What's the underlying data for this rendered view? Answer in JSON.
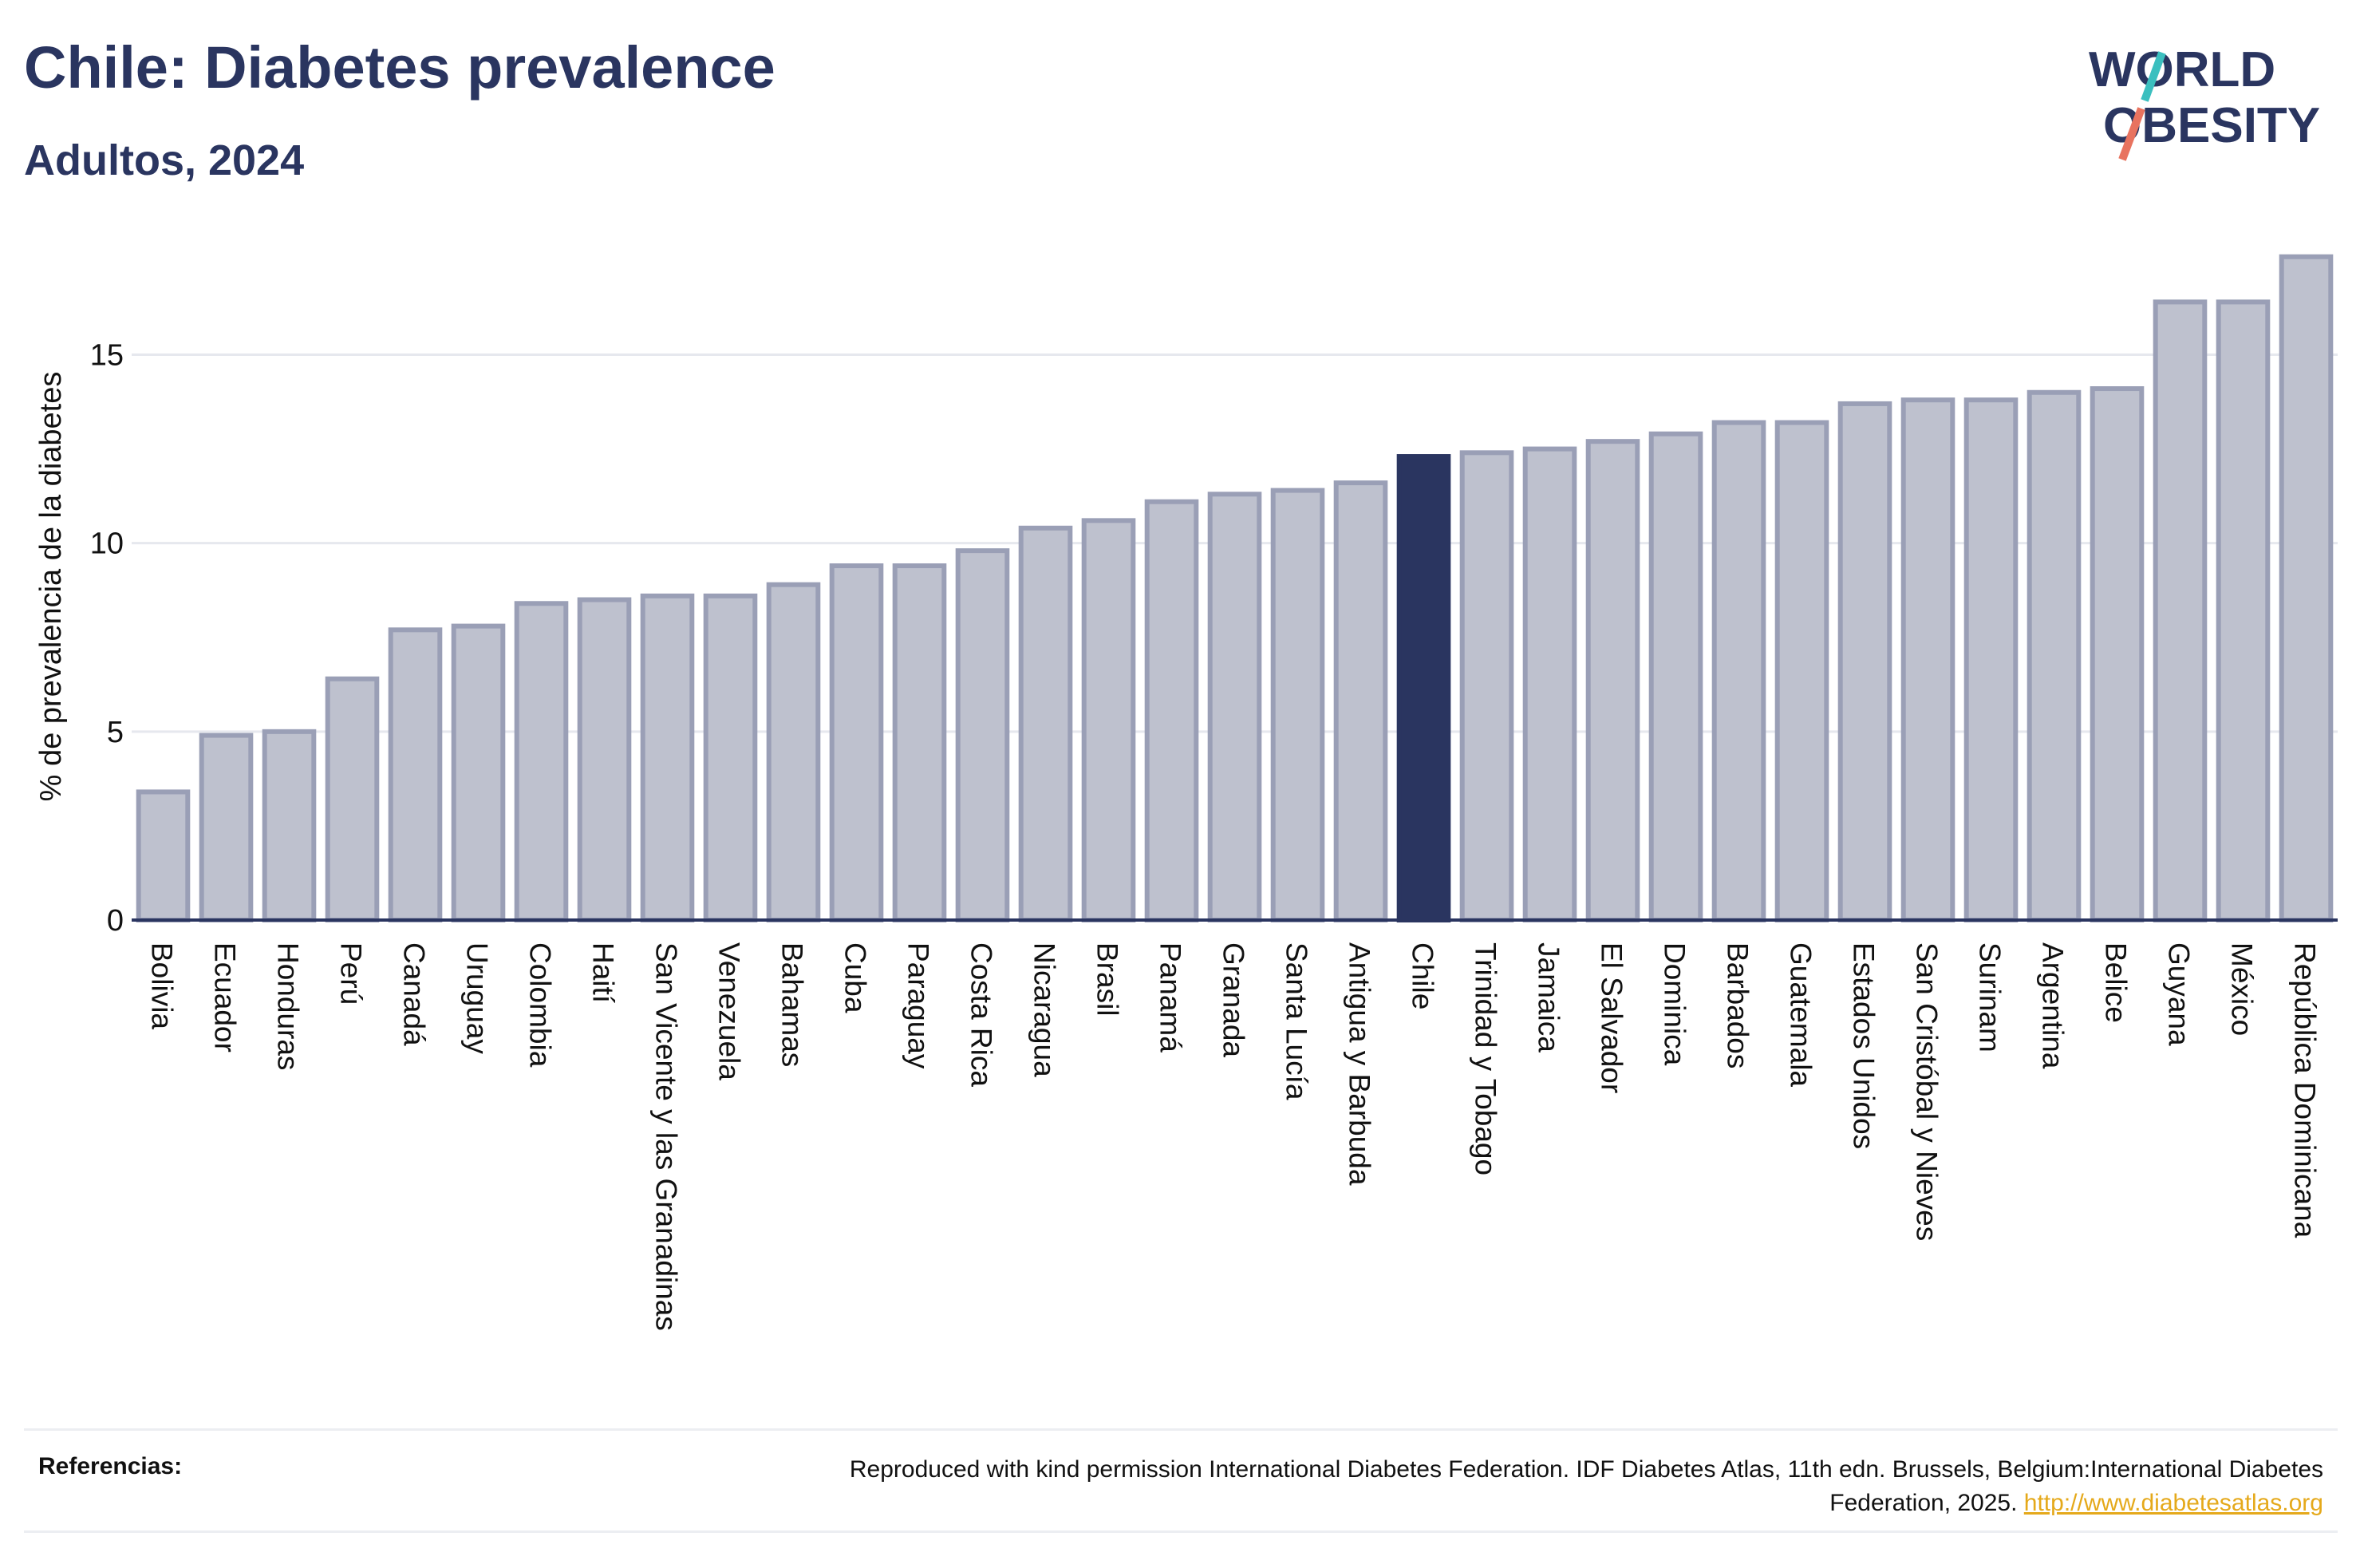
{
  "header": {
    "title": "Chile: Diabetes prevalence",
    "subtitle": "Adultos, 2024",
    "logo_line1": "WORLD",
    "logo_line2": "OBESITY"
  },
  "footer": {
    "label": "Referencias:",
    "text": "Reproduced with kind permission International Diabetes Federation. IDF Diabetes Atlas, 11th edn. Brussels, Belgium:International Diabetes Federation, 2025.",
    "link": "http://www.diabetesatlas.org"
  },
  "colors": {
    "bar": "#bec1ce",
    "bar_border": "#9a9fb6",
    "highlight": "#2a3560",
    "grid": "#e6e8ee",
    "axis": "#2a3560",
    "logo_accent_teal": "#3bbfbf",
    "logo_accent_red": "#e8735f"
  },
  "chart_data": {
    "type": "bar",
    "ylabel": "% de prevalencia de la diabetes",
    "ylim": [
      0,
      17.7
    ],
    "yticks": [
      0,
      5,
      10,
      15
    ],
    "grid": true,
    "highlight": "Chile",
    "categories": [
      "Bolivia",
      "Ecuador",
      "Honduras",
      "Perú",
      "Canadá",
      "Uruguay",
      "Colombia",
      "Haití",
      "San Vicente y las Granadinas",
      "Venezuela",
      "Bahamas",
      "Cuba",
      "Paraguay",
      "Costa Rica",
      "Nicaragua",
      "Brasil",
      "Panamá",
      "Granada",
      "Santa Lucía",
      "Antigua y Barbuda",
      "Chile",
      "Trinidad y Tobago",
      "Jamaica",
      "El Salvador",
      "Dominica",
      "Barbados",
      "Guatemala",
      "Estados Unidos",
      "San Cristóbal y Nieves",
      "Surinam",
      "Argentina",
      "Belice",
      "Guyana",
      "México",
      "República Dominicana"
    ],
    "values": [
      3.4,
      4.9,
      5.0,
      6.4,
      7.7,
      7.8,
      8.4,
      8.5,
      8.6,
      8.6,
      8.9,
      9.4,
      9.4,
      9.8,
      10.4,
      10.6,
      11.1,
      11.3,
      11.4,
      11.6,
      12.3,
      12.4,
      12.5,
      12.7,
      12.9,
      13.2,
      13.2,
      13.7,
      13.8,
      13.8,
      14.0,
      14.1,
      16.4,
      16.4,
      17.6
    ]
  }
}
